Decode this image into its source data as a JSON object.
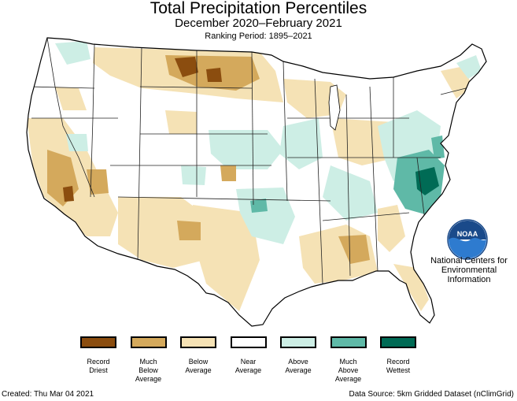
{
  "header": {
    "title": "Total Precipitation Percentiles",
    "subtitle": "December 2020–February 2021",
    "ranking_period": "Ranking Period: 1895–2021"
  },
  "legend": {
    "items": [
      {
        "label": "Record\nDriest",
        "color": "#8b4d0f"
      },
      {
        "label": "Much\nBelow\nAverage",
        "color": "#d4a95c"
      },
      {
        "label": "Below\nAverage",
        "color": "#f5e2b5"
      },
      {
        "label": "Near\nAverage",
        "color": "#ffffff"
      },
      {
        "label": "Above\nAverage",
        "color": "#cdeee5"
      },
      {
        "label": "Much\nAbove\nAverage",
        "color": "#5fb9a7"
      },
      {
        "label": "Record\nWettest",
        "color": "#006b55"
      }
    ]
  },
  "branding": {
    "logo_text": "NOAA",
    "org_name": "National Centers for\nEnvironmental\nInformation"
  },
  "footer": {
    "created": "Created: Thu Mar 04 2021",
    "source": "Data Source: 5km Gridded Dataset (nClimGrid)"
  }
}
